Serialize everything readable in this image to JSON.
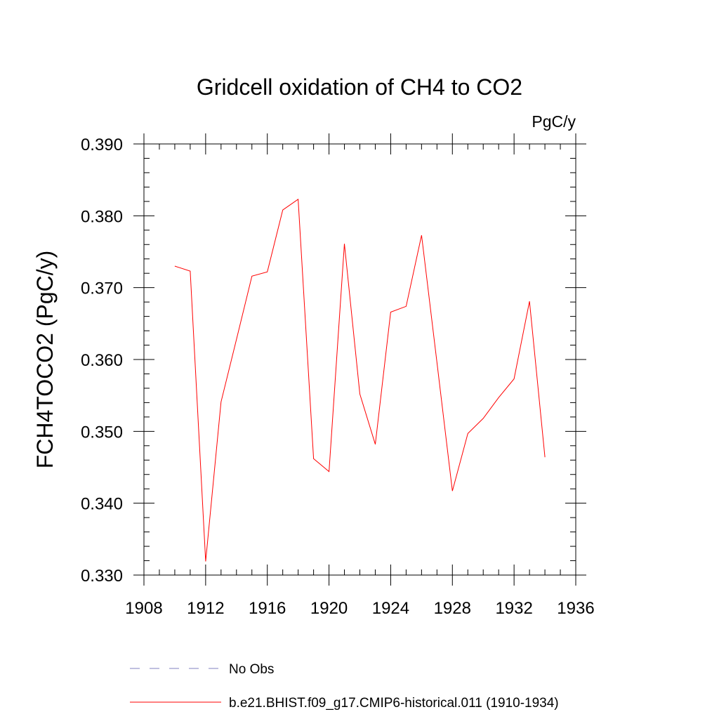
{
  "chart_data": {
    "type": "line",
    "title": "Gridcell oxidation of CH4 to CO2",
    "units_label": "PgC/y",
    "ylabel": "FCH4TOCO2  (PgC/y)",
    "xlabel": "",
    "xlim": [
      1908,
      1936
    ],
    "ylim": [
      0.33,
      0.39
    ],
    "x_ticks": [
      1908,
      1912,
      1916,
      1920,
      1924,
      1928,
      1932,
      1936
    ],
    "x_tick_labels": [
      "1908",
      "1912",
      "1916",
      "1920",
      "1924",
      "1928",
      "1932",
      "1936"
    ],
    "y_ticks": [
      0.33,
      0.34,
      0.35,
      0.36,
      0.37,
      0.38,
      0.39
    ],
    "y_tick_labels": [
      "0.330",
      "0.340",
      "0.350",
      "0.360",
      "0.370",
      "0.380",
      "0.390"
    ],
    "grid": false,
    "legend_position": "bottom",
    "series": [
      {
        "name": "b.e21.BHIST.f09_g17.CMIP6-historical.011 (1910-1934)",
        "color": "#ff0000",
        "dash": "solid",
        "x": [
          1910,
          1911,
          1912,
          1913,
          1914,
          1915,
          1916,
          1917,
          1918,
          1919,
          1920,
          1921,
          1922,
          1923,
          1924,
          1925,
          1926,
          1927,
          1928,
          1929,
          1930,
          1931,
          1932,
          1933,
          1934
        ],
        "values": [
          0.373,
          0.3723,
          0.3319,
          0.3541,
          0.3628,
          0.3716,
          0.3722,
          0.3808,
          0.3823,
          0.3462,
          0.3444,
          0.3761,
          0.3552,
          0.3482,
          0.3666,
          0.3674,
          0.3773,
          0.3596,
          0.3417,
          0.3497,
          0.3518,
          0.3547,
          0.3573,
          0.3681,
          0.3464
        ]
      }
    ],
    "legend": [
      {
        "label": "No Obs",
        "color": "#8080c0",
        "dash": "dashed"
      },
      {
        "label": "b.e21.BHIST.f09_g17.CMIP6-historical.011 (1910-1934)",
        "color": "#ff0000",
        "dash": "solid"
      }
    ]
  }
}
